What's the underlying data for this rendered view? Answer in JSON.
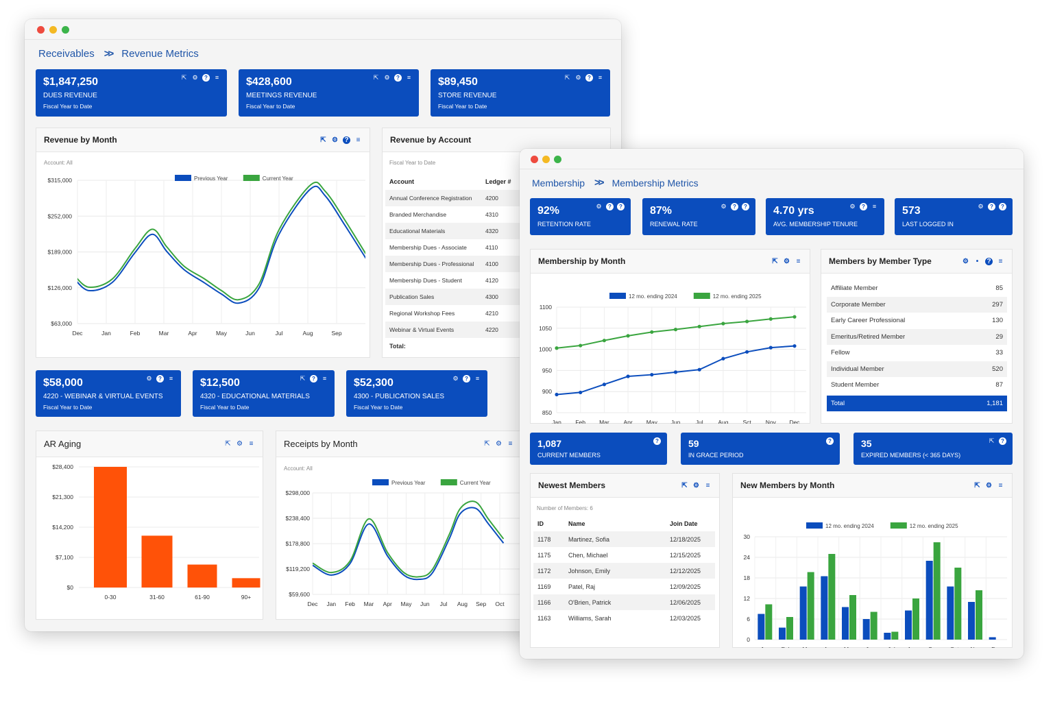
{
  "w1": {
    "breadcrumb": {
      "parent": "Receivables",
      "current": "Revenue Metrics"
    },
    "kpis": [
      {
        "value": "$1,847,250",
        "label": "DUES REVENUE",
        "sub": "Fiscal Year to Date"
      },
      {
        "value": "$428,600",
        "label": "MEETINGS REVENUE",
        "sub": "Fiscal Year to Date"
      },
      {
        "value": "$89,450",
        "label": "STORE REVENUE",
        "sub": "Fiscal Year to Date"
      }
    ],
    "kpis2": [
      {
        "value": "$58,000",
        "label": "4220 - WEBINAR & VIRTUAL EVENTS",
        "sub": "Fiscal Year to Date"
      },
      {
        "value": "$12,500",
        "label": "4320 - EDUCATIONAL MATERIALS",
        "sub": "Fiscal Year to Date"
      },
      {
        "value": "$52,300",
        "label": "4300 - PUBLICATION SALES",
        "sub": "Fiscal Year to Date"
      }
    ],
    "rev_month": {
      "title": "Revenue by Month",
      "sub": "Account: All"
    },
    "rev_account": {
      "title": "Revenue by Account",
      "sub": "Fiscal Year to Date",
      "col_account": "Account",
      "col_ledger": "Ledger #",
      "rows": [
        {
          "account": "Annual Conference Registration",
          "ledger": "4200"
        },
        {
          "account": "Branded Merchandise",
          "ledger": "4310"
        },
        {
          "account": "Educational Materials",
          "ledger": "4320"
        },
        {
          "account": "Membership Dues - Associate",
          "ledger": "4110"
        },
        {
          "account": "Membership Dues - Professional",
          "ledger": "4100"
        },
        {
          "account": "Membership Dues - Student",
          "ledger": "4120"
        },
        {
          "account": "Publication Sales",
          "ledger": "4300"
        },
        {
          "account": "Regional Workshop Fees",
          "ledger": "4210"
        },
        {
          "account": "Webinar & Virtual Events",
          "ledger": "4220"
        }
      ],
      "total_label": "Total:"
    },
    "ar_aging": {
      "title": "AR Aging"
    },
    "receipts": {
      "title": "Receipts by Month",
      "sub": "Account: All"
    }
  },
  "w2": {
    "breadcrumb": {
      "parent": "Membership",
      "current": "Membership Metrics"
    },
    "kpis": [
      {
        "value": "92%",
        "label": "RETENTION RATE"
      },
      {
        "value": "87%",
        "label": "RENEWAL RATE"
      },
      {
        "value": "4.70 yrs",
        "label": "AVG. MEMBERSHIP TENURE"
      },
      {
        "value": "573",
        "label": "LAST LOGGED IN"
      }
    ],
    "kpis2": [
      {
        "value": "1,087",
        "label": "CURRENT MEMBERS"
      },
      {
        "value": "59",
        "label": "IN GRACE PERIOD"
      },
      {
        "value": "35",
        "label": "EXPIRED MEMBERS (< 365 DAYS)"
      }
    ],
    "mem_month": {
      "title": "Membership by Month"
    },
    "member_type": {
      "title": "Members by Member Type",
      "rows": [
        {
          "name": "Affiliate Member",
          "count": "85"
        },
        {
          "name": "Corporate Member",
          "count": "297"
        },
        {
          "name": "Early Career Professional",
          "count": "130"
        },
        {
          "name": "Emeritus/Retired Member",
          "count": "29"
        },
        {
          "name": "Fellow",
          "count": "33"
        },
        {
          "name": "Individual Member",
          "count": "520"
        },
        {
          "name": "Student Member",
          "count": "87"
        }
      ],
      "total": {
        "name": "Total",
        "count": "1,181"
      }
    },
    "newest": {
      "title": "Newest Members",
      "sub": "Number of Members: 6",
      "cols": [
        "ID",
        "Name",
        "Join Date"
      ],
      "rows": [
        {
          "id": "1178",
          "name": "Martinez, Sofia",
          "date": "12/18/2025"
        },
        {
          "id": "1175",
          "name": "Chen, Michael",
          "date": "12/15/2025"
        },
        {
          "id": "1172",
          "name": "Johnson, Emily",
          "date": "12/12/2025"
        },
        {
          "id": "1169",
          "name": "Patel, Raj",
          "date": "12/09/2025"
        },
        {
          "id": "1166",
          "name": "O'Brien, Patrick",
          "date": "12/06/2025"
        },
        {
          "id": "1163",
          "name": "Williams, Sarah",
          "date": "12/03/2025"
        }
      ]
    },
    "new_month": {
      "title": "New Members by Month"
    }
  },
  "colors": {
    "blue": "#0b4dbd",
    "green": "#3aa53f",
    "orange": "#ff5208",
    "link": "#1f55a8"
  },
  "chart_data": [
    {
      "id": "revenue-by-month",
      "type": "line",
      "categories": [
        "Dec",
        "Jan",
        "Feb",
        "Mar",
        "Apr",
        "May",
        "Jun",
        "Jul",
        "Aug",
        "Sep"
      ],
      "x_positions": [
        0,
        1,
        2,
        3,
        4,
        5,
        6,
        7,
        8,
        9
      ],
      "series": [
        {
          "name": "Previous Year",
          "values": [
            [
              -0.1,
              141000
            ],
            [
              0.4,
              121000
            ],
            [
              1.2,
              135000
            ],
            [
              2.0,
              188000
            ],
            [
              2.6,
              220000
            ],
            [
              3.1,
              190000
            ],
            [
              3.7,
              158000
            ],
            [
              4.4,
              135000
            ],
            [
              5.0,
              115000
            ],
            [
              5.6,
              99000
            ],
            [
              6.3,
              125000
            ],
            [
              7.0,
              220000
            ],
            [
              8.1,
              300000
            ],
            [
              8.6,
              288000
            ],
            [
              9.3,
              235000
            ],
            [
              10.3,
              155000
            ]
          ]
        },
        {
          "name": "Current Year",
          "values": [
            [
              -0.1,
              147000
            ],
            [
              0.4,
              127000
            ],
            [
              1.2,
              141000
            ],
            [
              2.0,
              195000
            ],
            [
              2.6,
              229000
            ],
            [
              3.1,
              198000
            ],
            [
              3.7,
              164000
            ],
            [
              4.4,
              142000
            ],
            [
              5.0,
              121000
            ],
            [
              5.6,
              105000
            ],
            [
              6.3,
              132000
            ],
            [
              7.0,
              228000
            ],
            [
              8.1,
              307000
            ],
            [
              8.6,
              296000
            ],
            [
              9.3,
              244000
            ],
            [
              10.3,
              162000
            ]
          ]
        }
      ],
      "y_ticks": [
        "$63,000",
        "$126,000",
        "$189,000",
        "$252,000",
        "$315,000"
      ],
      "ylim": [
        60000,
        330000
      ],
      "legend": "top-center"
    },
    {
      "id": "ar-aging",
      "type": "bar",
      "categories": [
        "0-30",
        "31-60",
        "61-90",
        "90+"
      ],
      "values": [
        28400,
        12200,
        5400,
        2200
      ],
      "y_ticks": [
        "$0",
        "$7,100",
        "$14,200",
        "$21,300",
        "$28,400"
      ],
      "ylim": [
        0,
        28400
      ]
    },
    {
      "id": "receipts-by-month",
      "type": "line",
      "categories": [
        "Dec",
        "Jan",
        "Feb",
        "Mar",
        "Apr",
        "May",
        "Jun",
        "Jul",
        "Aug",
        "Sep",
        "Oct"
      ],
      "series": [
        {
          "name": "Previous Year",
          "values": [
            [
              0,
              128000
            ],
            [
              1,
              105000
            ],
            [
              2,
              132000
            ],
            [
              3,
              225000
            ],
            [
              4,
              150000
            ],
            [
              4.9,
              104000
            ],
            [
              5.7,
              95000
            ],
            [
              6.4,
              110000
            ],
            [
              7.3,
              190000
            ],
            [
              7.9,
              250000
            ],
            [
              8.7,
              262000
            ],
            [
              9.4,
              225000
            ],
            [
              10.2,
              180000
            ]
          ]
        },
        {
          "name": "Current Year",
          "values": [
            [
              0,
              133000
            ],
            [
              1,
              111000
            ],
            [
              2,
              138000
            ],
            [
              3,
              237000
            ],
            [
              4,
              158000
            ],
            [
              4.9,
              110000
            ],
            [
              5.7,
              101000
            ],
            [
              6.4,
              118000
            ],
            [
              7.3,
              200000
            ],
            [
              7.9,
              262000
            ],
            [
              8.7,
              277000
            ],
            [
              9.4,
              236000
            ],
            [
              10.2,
              190000
            ]
          ]
        }
      ],
      "y_ticks": [
        "$59,600",
        "$119,200",
        "$178,800",
        "$238,400",
        "$298,000"
      ],
      "ylim": [
        59600,
        298000
      ],
      "legend": "top-center"
    },
    {
      "id": "membership-by-month",
      "type": "line",
      "categories": [
        "Jan",
        "Feb",
        "Mar",
        "Apr",
        "May",
        "Jun",
        "Jul",
        "Aug",
        "Sct",
        "Nov",
        "Dec"
      ],
      "series": [
        {
          "name": "12 mo. ending 2024",
          "values": [
            893,
            898,
            917,
            936,
            940,
            946,
            952,
            978,
            994,
            1004,
            1008
          ]
        },
        {
          "name": "12 mo. ending 2025",
          "values": [
            1003,
            1009,
            1021,
            1032,
            1041,
            1047,
            1054,
            1061,
            1066,
            1072,
            1077
          ]
        }
      ],
      "y_ticks": [
        "850",
        "900",
        "950",
        "1000",
        "1050",
        "1100"
      ],
      "ylim": [
        850,
        1100
      ],
      "legend": "top-center"
    },
    {
      "id": "new-members-by-month",
      "type": "bar",
      "categories": [
        "Jan",
        "Feb",
        "Mar",
        "Apr",
        "May",
        "Jun",
        "Jul",
        "Aug",
        "Sep",
        "Oct",
        "Nov",
        "Dec"
      ],
      "series": [
        {
          "name": "12 mo. ending 2024",
          "values": [
            7.5,
            3.5,
            15.5,
            18.5,
            9.5,
            6,
            2,
            8.5,
            23,
            15.5,
            11,
            0.7
          ]
        },
        {
          "name": "12 mo. ending 2025",
          "values": [
            10.3,
            6.6,
            19.7,
            25,
            13,
            8.1,
            2.3,
            12,
            28.4,
            21,
            14.4,
            0
          ]
        }
      ],
      "y_ticks": [
        "0",
        "6",
        "12",
        "18",
        "24",
        "30"
      ],
      "ylim": [
        0,
        30
      ],
      "legend": "top-center"
    }
  ]
}
